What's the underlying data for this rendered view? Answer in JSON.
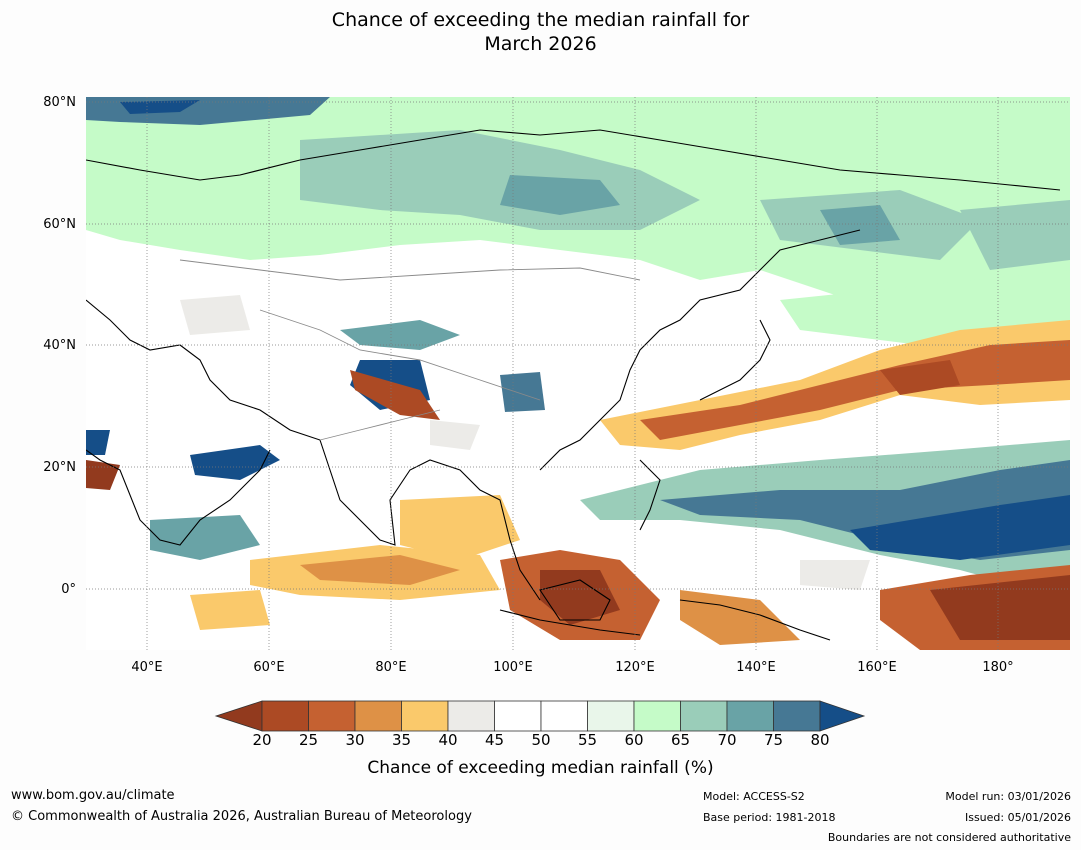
{
  "title": {
    "line1": "Chance of exceeding the median rainfall for",
    "line2": "March 2026"
  },
  "map": {
    "lat_labels": [
      "80°N",
      "60°N",
      "40°N",
      "20°N",
      "0°"
    ],
    "lon_labels": [
      "40°E",
      "60°E",
      "80°E",
      "100°E",
      "120°E",
      "140°E",
      "160°E",
      "180°"
    ],
    "ocean_color": "#ffffff",
    "land_outline_color": "#000000",
    "border_color": "#888888"
  },
  "colorbar": {
    "title": "Chance of exceeding median rainfall (%)",
    "ticks": [
      "20",
      "25",
      "30",
      "35",
      "40",
      "45",
      "50",
      "55",
      "60",
      "65",
      "70",
      "75",
      "80"
    ],
    "under_color": "#923a1e",
    "over_color": "#154e88",
    "colors": [
      "#ac4a24",
      "#c56131",
      "#de9146",
      "#fac96b",
      "#ecebe8",
      "#ffffff",
      "#ffffff",
      "#e9f6ea",
      "#c5fbc8",
      "#9acdb9",
      "#69a3a6",
      "#467894"
    ]
  },
  "footer": {
    "website": "www.bom.gov.au/climate",
    "copyright": "© Commonwealth of Australia 2026, Australian Bureau of Meteorology",
    "model": "Model: ACCESS-S2",
    "base_period": "Base period: 1981-2018",
    "model_run": "Model run: 03/01/2026",
    "issued": "Issued: 05/01/2026",
    "disclaimer": "Boundaries are not considered authoritative"
  }
}
